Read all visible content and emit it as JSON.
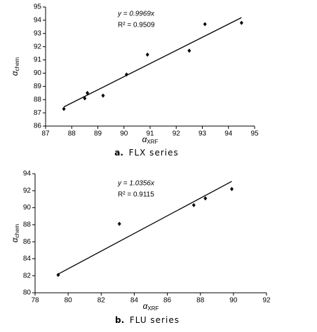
{
  "chart_data": [
    {
      "type": "scatter",
      "x": [
        87.7,
        88.5,
        88.6,
        89.2,
        90.1,
        90.9,
        92.5,
        93.1,
        94.5
      ],
      "values": [
        87.3,
        88.1,
        88.5,
        88.3,
        89.9,
        91.4,
        91.7,
        93.7,
        93.8
      ],
      "color": "#000000",
      "trendline": {
        "x": [
          87.7,
          94.5
        ],
        "values": [
          87.45,
          94.2
        ]
      },
      "equation": "y = 0.9969x",
      "r_squared": "R² = 0.9509",
      "x_label": "α",
      "x_label_sub": "XRF",
      "y_label": "α",
      "y_label_sub": "chem",
      "caption_label": "a.",
      "caption": "FLX series",
      "xlim": [
        87,
        95
      ],
      "xticks": [
        87,
        88,
        89,
        90,
        91,
        92,
        93,
        94,
        95
      ],
      "ylim": [
        86,
        95
      ],
      "yticks": [
        86,
        87,
        88,
        89,
        90,
        91,
        92,
        93,
        94,
        95
      ]
    },
    {
      "type": "scatter",
      "x": [
        79.4,
        83.1,
        87.6,
        88.3,
        89.9
      ],
      "values": [
        82.1,
        88.1,
        90.3,
        91.1,
        92.2
      ],
      "color": "#000000",
      "trendline": {
        "x": [
          79.4,
          89.9
        ],
        "values": [
          82.2,
          93.1
        ]
      },
      "equation": "y = 1.0356x",
      "r_squared": "R² = 0.9115",
      "x_label": "α",
      "x_label_sub": "XRF",
      "y_label": "α",
      "y_label_sub": "chem",
      "caption_label": "b.",
      "caption": "FLU series",
      "xlim": [
        78,
        92
      ],
      "xticks": [
        78,
        80,
        82,
        84,
        86,
        88,
        90,
        92
      ],
      "ylim": [
        80,
        94
      ],
      "yticks": [
        80,
        82,
        84,
        86,
        88,
        90,
        92,
        94
      ]
    }
  ]
}
